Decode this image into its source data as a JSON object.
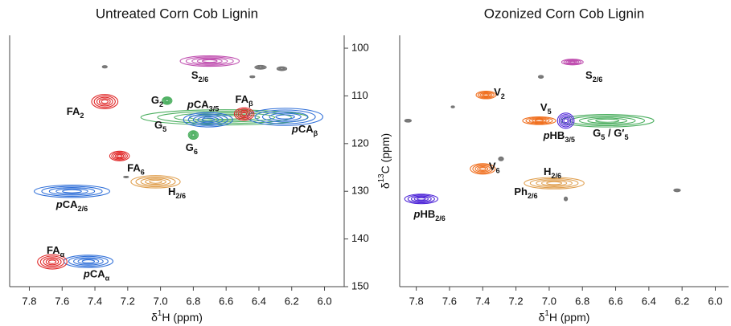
{
  "chart_data": [
    {
      "type": "contour",
      "title": "Untreated Corn Cob Lignin",
      "xlabel": [
        {
          "t": "δ"
        },
        {
          "t": "1",
          "s": "sup"
        },
        {
          "t": "H (ppm)"
        }
      ],
      "ylabel": [
        {
          "t": "δ"
        },
        {
          "t": "13",
          "s": "sup"
        },
        {
          "t": "C (ppm)"
        }
      ],
      "xlim": [
        7.92,
        5.88
      ],
      "ylim": [
        150,
        97.3
      ],
      "xticks": [
        7.8,
        7.6,
        7.4,
        7.2,
        {
          "value": 7,
          "label": "7.0"
        },
        6.8,
        6.6,
        6.4,
        6.2,
        {
          "value": 6,
          "label": "6.0"
        }
      ],
      "yticks": [
        100,
        110,
        120,
        130,
        140,
        150
      ],
      "peaks": [
        {
          "x": 6.7,
          "y": 102.7,
          "w": 0.36,
          "h": 2.2,
          "color": "#c050b0"
        },
        {
          "x": 7.34,
          "y": 103.9,
          "w": 0.03,
          "h": 0.5,
          "color": "#777777"
        },
        {
          "x": 6.39,
          "y": 104.0,
          "w": 0.07,
          "h": 0.8,
          "color": "#777777"
        },
        {
          "x": 6.26,
          "y": 104.3,
          "w": 0.06,
          "h": 0.8,
          "color": "#777777"
        },
        {
          "x": 6.44,
          "y": 106.0,
          "w": 0.03,
          "h": 0.4,
          "color": "#777777"
        },
        {
          "x": 6.61,
          "y": 114.5,
          "w": 1.02,
          "h": 3.2,
          "color": "#4caf60"
        },
        {
          "x": 6.24,
          "y": 114.4,
          "w": 0.46,
          "h": 3.6,
          "color": "#2f6fd8"
        },
        {
          "x": 6.71,
          "y": 115.0,
          "w": 0.3,
          "h": 3.0,
          "color": "#2f6fd8"
        },
        {
          "x": 6.49,
          "y": 113.8,
          "w": 0.12,
          "h": 2.6,
          "color": "#e02828"
        },
        {
          "x": 7.34,
          "y": 111.2,
          "w": 0.16,
          "h": 3.0,
          "color": "#e02828"
        },
        {
          "x": 6.96,
          "y": 111.0,
          "w": 0.06,
          "h": 1.6,
          "color": "#4caf60"
        },
        {
          "x": 6.8,
          "y": 118.2,
          "w": 0.06,
          "h": 1.8,
          "color": "#4caf60"
        },
        {
          "x": 7.25,
          "y": 122.6,
          "w": 0.12,
          "h": 2.0,
          "color": "#e02828"
        },
        {
          "x": 7.21,
          "y": 127.0,
          "w": 0.03,
          "h": 0.3,
          "color": "#777777"
        },
        {
          "x": 7.03,
          "y": 128.0,
          "w": 0.3,
          "h": 2.6,
          "color": "#e0a050"
        },
        {
          "x": 7.54,
          "y": 130.0,
          "w": 0.46,
          "h": 2.6,
          "color": "#2f6fd8"
        },
        {
          "x": 7.44,
          "y": 144.7,
          "w": 0.3,
          "h": 2.6,
          "color": "#2f6fd8"
        },
        {
          "x": 7.66,
          "y": 144.8,
          "w": 0.18,
          "h": 3.0,
          "color": "#e02828"
        }
      ],
      "annotations": [
        {
          "x": 6.76,
          "y": 105.9,
          "parts": [
            {
              "t": "S"
            },
            {
              "t": "2/6",
              "s": "sub"
            }
          ]
        },
        {
          "x": 7.52,
          "y": 113.5,
          "parts": [
            {
              "t": "FA"
            },
            {
              "t": "2",
              "s": "sub"
            }
          ]
        },
        {
          "x": 7.02,
          "y": 111.1,
          "parts": [
            {
              "t": "G"
            },
            {
              "t": "2",
              "s": "sub"
            }
          ]
        },
        {
          "x": 6.74,
          "y": 112.0,
          "parts": [
            {
              "t": "p",
              "s": "i"
            },
            {
              "t": "CA"
            },
            {
              "t": "3/5",
              "s": "sub"
            }
          ]
        },
        {
          "x": 6.49,
          "y": 110.9,
          "parts": [
            {
              "t": "FA"
            },
            {
              "t": "β",
              "s": "sub"
            }
          ]
        },
        {
          "x": 7.0,
          "y": 116.3,
          "parts": [
            {
              "t": "G"
            },
            {
              "t": "5",
              "s": "sub"
            }
          ]
        },
        {
          "x": 6.12,
          "y": 117.2,
          "parts": [
            {
              "t": "p",
              "s": "i"
            },
            {
              "t": "CA"
            },
            {
              "t": "β",
              "s": "sub"
            }
          ]
        },
        {
          "x": 6.81,
          "y": 121.0,
          "parts": [
            {
              "t": "G"
            },
            {
              "t": "6",
              "s": "sub"
            }
          ]
        },
        {
          "x": 7.15,
          "y": 125.3,
          "parts": [
            {
              "t": "FA"
            },
            {
              "t": "6",
              "s": "sub"
            }
          ]
        },
        {
          "x": 6.9,
          "y": 130.3,
          "parts": [
            {
              "t": "H"
            },
            {
              "t": "2/6",
              "s": "sub"
            }
          ]
        },
        {
          "x": 7.54,
          "y": 133.0,
          "parts": [
            {
              "t": "p",
              "s": "i"
            },
            {
              "t": "CA"
            },
            {
              "t": "2/6",
              "s": "sub"
            }
          ]
        },
        {
          "x": 7.64,
          "y": 142.6,
          "parts": [
            {
              "t": "FA"
            },
            {
              "t": "α",
              "s": "sub"
            }
          ]
        },
        {
          "x": 7.39,
          "y": 147.6,
          "parts": [
            {
              "t": "p",
              "s": "i"
            },
            {
              "t": "CA"
            },
            {
              "t": "α",
              "s": "sub"
            }
          ]
        }
      ]
    },
    {
      "type": "contour",
      "title": "Ozonized Corn Cob Lignin",
      "xlabel": [
        {
          "t": "δ"
        },
        {
          "t": "1",
          "s": "sup"
        },
        {
          "t": "H (ppm)"
        }
      ],
      "xlim": [
        7.9,
        5.92
      ],
      "ylim": [
        150,
        97.3
      ],
      "xticks": [
        7.8,
        7.6,
        7.4,
        7.2,
        {
          "value": 7,
          "label": "7.0"
        },
        6.8,
        6.6,
        6.4,
        6.2,
        {
          "value": 6,
          "label": "6.0"
        }
      ],
      "peaks": [
        {
          "x": 6.86,
          "y": 102.9,
          "w": 0.13,
          "h": 1.2,
          "color": "#c050b0"
        },
        {
          "x": 7.05,
          "y": 106.0,
          "w": 0.03,
          "h": 0.6,
          "color": "#777777"
        },
        {
          "x": 7.58,
          "y": 112.3,
          "w": 0.02,
          "h": 0.4,
          "color": "#777777"
        },
        {
          "x": 7.85,
          "y": 115.2,
          "w": 0.04,
          "h": 0.6,
          "color": "#777777"
        },
        {
          "x": 7.29,
          "y": 123.2,
          "w": 0.03,
          "h": 0.8,
          "color": "#777777"
        },
        {
          "x": 6.9,
          "y": 131.6,
          "w": 0.02,
          "h": 0.8,
          "color": "#777777"
        },
        {
          "x": 6.23,
          "y": 129.8,
          "w": 0.04,
          "h": 0.6,
          "color": "#777777"
        },
        {
          "x": 7.38,
          "y": 109.8,
          "w": 0.12,
          "h": 1.6,
          "color": "#f07020"
        },
        {
          "x": 6.65,
          "y": 115.2,
          "w": 0.56,
          "h": 2.6,
          "color": "#4caf60"
        },
        {
          "x": 7.06,
          "y": 115.2,
          "w": 0.2,
          "h": 1.6,
          "color": "#f07020"
        },
        {
          "x": 6.9,
          "y": 115.2,
          "w": 0.1,
          "h": 3.2,
          "color": "#5028d8"
        },
        {
          "x": 7.4,
          "y": 125.3,
          "w": 0.15,
          "h": 2.2,
          "color": "#f07020"
        },
        {
          "x": 6.97,
          "y": 128.3,
          "w": 0.36,
          "h": 2.4,
          "color": "#e0a050"
        },
        {
          "x": 7.77,
          "y": 131.6,
          "w": 0.2,
          "h": 2.0,
          "color": "#5028d8"
        }
      ],
      "annotations": [
        {
          "x": 6.73,
          "y": 105.9,
          "parts": [
            {
              "t": "S"
            },
            {
              "t": "2/6",
              "s": "sub"
            }
          ]
        },
        {
          "x": 7.3,
          "y": 109.4,
          "parts": [
            {
              "t": "V"
            },
            {
              "t": "2",
              "s": "sub"
            }
          ]
        },
        {
          "x": 7.02,
          "y": 112.6,
          "parts": [
            {
              "t": "V"
            },
            {
              "t": "5",
              "s": "sub"
            }
          ]
        },
        {
          "x": 6.94,
          "y": 118.5,
          "parts": [
            {
              "t": "p",
              "s": "i"
            },
            {
              "t": "HB"
            },
            {
              "t": "3/5",
              "s": "sub"
            }
          ]
        },
        {
          "x": 6.63,
          "y": 118.0,
          "parts": [
            {
              "t": "G"
            },
            {
              "t": "5",
              "s": "sub"
            },
            {
              "t": " / G′"
            },
            {
              "t": "5",
              "s": "sub"
            }
          ]
        },
        {
          "x": 7.33,
          "y": 125.0,
          "parts": [
            {
              "t": "V"
            },
            {
              "t": "6",
              "s": "sub"
            }
          ]
        },
        {
          "x": 6.98,
          "y": 126.1,
          "parts": [
            {
              "t": "H"
            },
            {
              "t": "2/6",
              "s": "sub"
            }
          ]
        },
        {
          "x": 7.14,
          "y": 130.3,
          "parts": [
            {
              "t": "Ph"
            },
            {
              "t": "2/6",
              "s": "sub"
            }
          ]
        },
        {
          "x": 7.72,
          "y": 135.0,
          "parts": [
            {
              "t": "p",
              "s": "i"
            },
            {
              "t": "HB"
            },
            {
              "t": "2/6",
              "s": "sub"
            }
          ]
        }
      ]
    }
  ]
}
